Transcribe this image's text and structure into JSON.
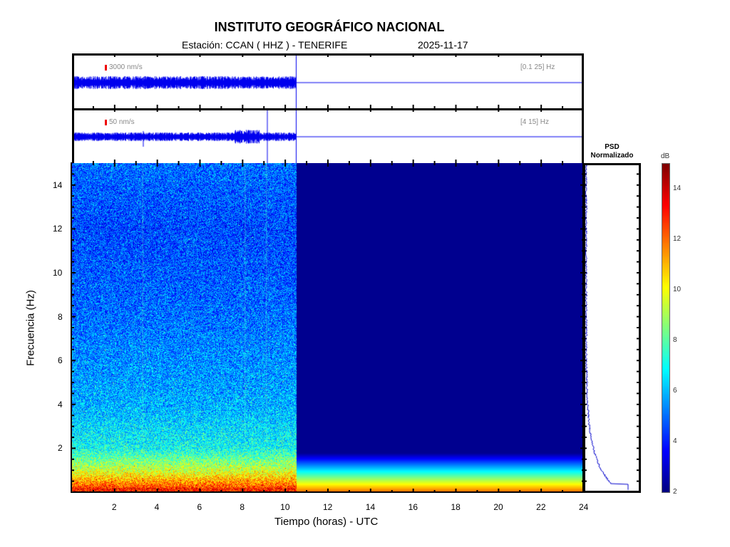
{
  "header": {
    "title": "INSTITUTO GEOGRÁFICO NACIONAL",
    "station_label": "Estación:  CCAN ( HHZ ) - TENERIFE",
    "date": "2025-11-17"
  },
  "traces": [
    {
      "scale": "3000 nm/s",
      "band": "[0.1 25] Hz"
    },
    {
      "scale": "50 nm/s",
      "band": "[4 15] Hz"
    }
  ],
  "psd": {
    "title_line1": "PSD",
    "title_line2": "Normalizado"
  },
  "colors": {
    "trace": "#0000ee",
    "scale_marker": "#e00000",
    "empty_region": "#00008f"
  },
  "chart_data": {
    "type": "heatmap",
    "title": "INSTITUTO GEOGRÁFICO NACIONAL",
    "xlabel": "Tiempo (horas) - UTC",
    "ylabel": "Frecuencia  (Hz)",
    "xlim": [
      0,
      24
    ],
    "ylim": [
      0,
      15
    ],
    "xticks": [
      "2",
      "4",
      "6",
      "8",
      "10",
      "12",
      "14",
      "16",
      "18",
      "20",
      "22",
      "24"
    ],
    "yticks": [
      "2",
      "4",
      "6",
      "8",
      "10",
      "12",
      "14"
    ],
    "data_end_hour": 10.5,
    "colorbar": {
      "label": "dB",
      "range": [
        2,
        15
      ],
      "ticks": [
        "2",
        "4",
        "6",
        "8",
        "10",
        "12",
        "14"
      ],
      "colormap": "jet"
    },
    "band_levels_db": [
      {
        "freq_hz": 0.2,
        "db": 12.5
      },
      {
        "freq_hz": 1,
        "db": 9.5
      },
      {
        "freq_hz": 2,
        "db": 7
      },
      {
        "freq_hz": 4,
        "db": 5.8
      },
      {
        "freq_hz": 8,
        "db": 5
      },
      {
        "freq_hz": 12,
        "db": 4.5
      },
      {
        "freq_hz": 15,
        "db": 5
      }
    ]
  }
}
